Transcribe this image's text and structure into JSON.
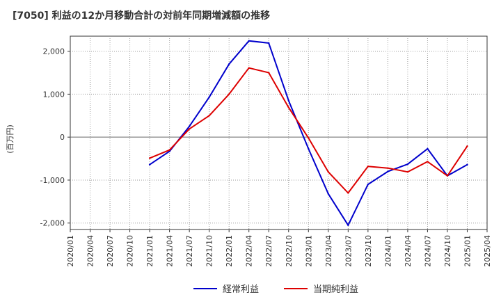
{
  "chart_data": {
    "type": "line",
    "title": "[7050]  利益の12か月移動合計の対前年同期増減額の推移",
    "ylabel": "(百万円)",
    "xlabel": "",
    "ylim": [
      -2150,
      2350
    ],
    "y_ticks": [
      2000,
      1000,
      0,
      -1000,
      -2000
    ],
    "y_tick_labels": [
      "2,000",
      "1,000",
      "0",
      "-1,000",
      "-2,000"
    ],
    "categories": [
      "2020/01",
      "2020/04",
      "2020/07",
      "2020/10",
      "2021/01",
      "2021/04",
      "2021/07",
      "2021/10",
      "2022/01",
      "2022/04",
      "2022/07",
      "2022/10",
      "2023/01",
      "2023/04",
      "2023/07",
      "2023/10",
      "2024/01",
      "2024/04",
      "2024/07",
      "2024/10",
      "2025/01",
      "2025/04"
    ],
    "series": [
      {
        "name": "経常利益",
        "color": "#0000cc",
        "values": [
          null,
          null,
          null,
          null,
          -640,
          -330,
          250,
          930,
          1700,
          2240,
          2190,
          850,
          -270,
          -1320,
          -2050,
          -1100,
          -800,
          -630,
          -270,
          -900,
          -640,
          null
        ]
      },
      {
        "name": "当期純利益",
        "color": "#dd0000",
        "values": [
          null,
          null,
          null,
          null,
          -490,
          -300,
          190,
          500,
          1000,
          1610,
          1500,
          690,
          -20,
          -810,
          -1300,
          -680,
          -720,
          -810,
          -570,
          -900,
          -210,
          null
        ]
      }
    ],
    "grid": true,
    "legend_position": "bottom-center"
  }
}
